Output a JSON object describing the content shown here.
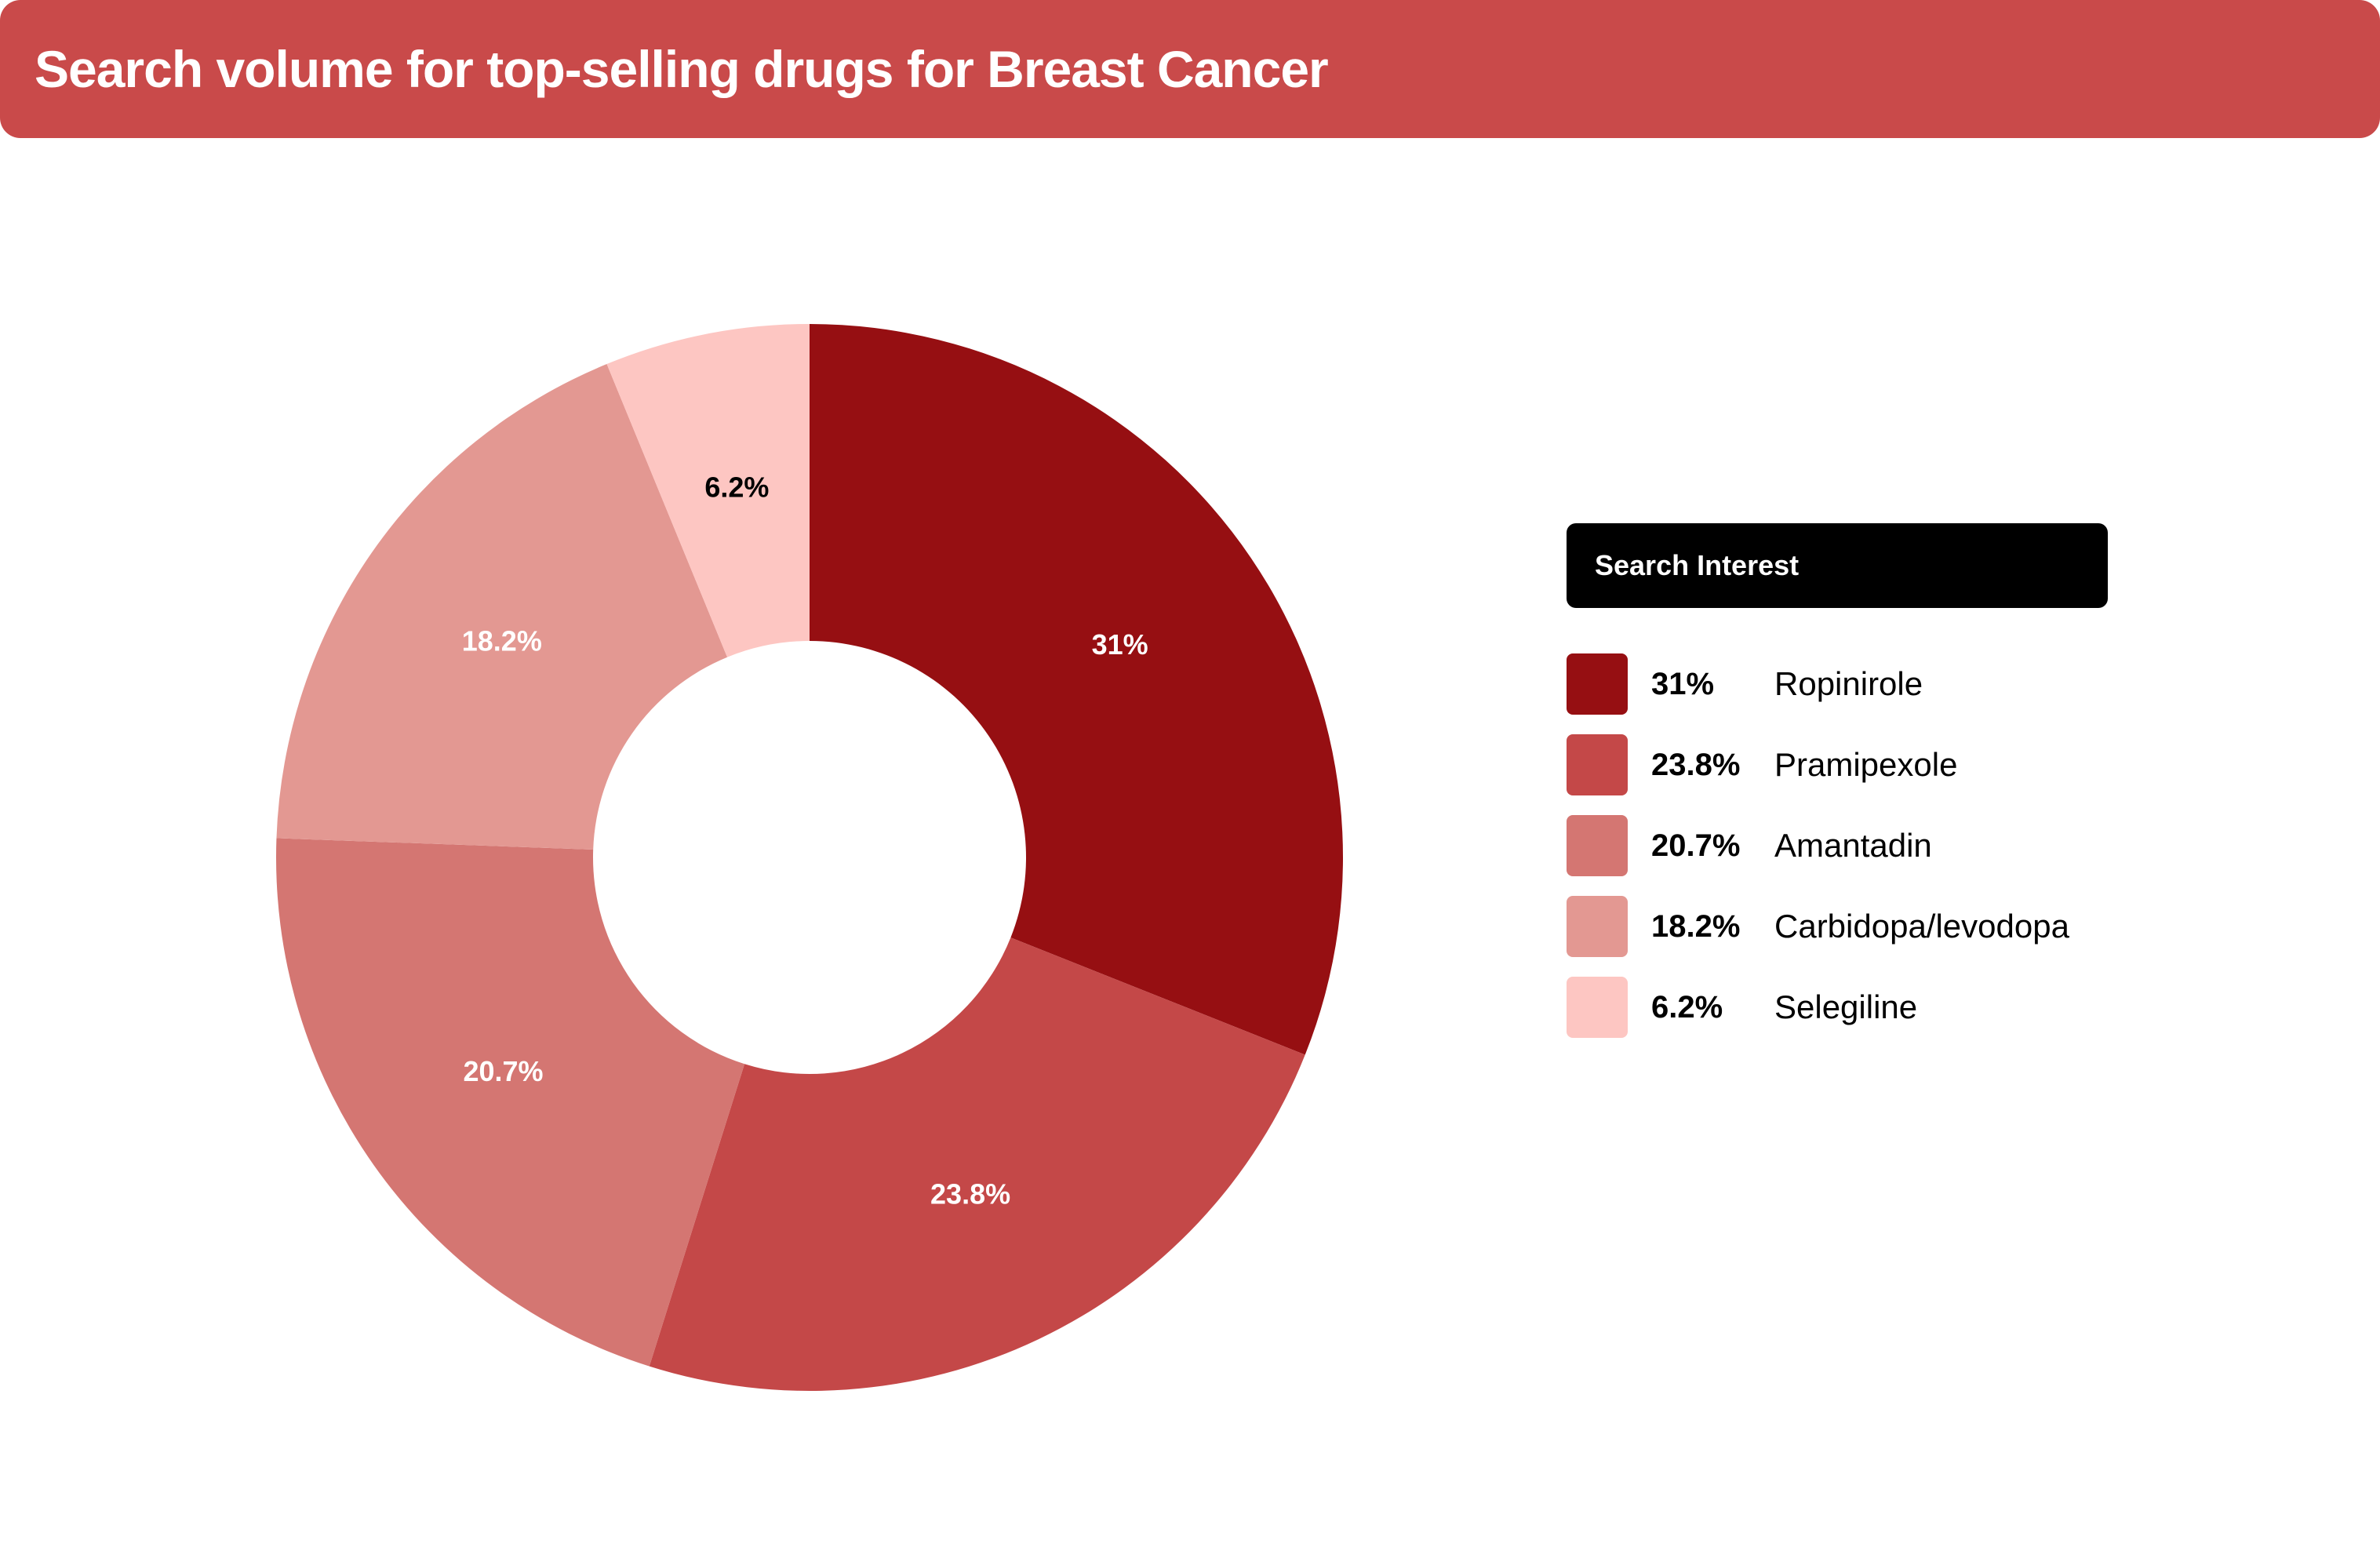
{
  "title": "Search volume for top-selling drugs for Breast Cancer",
  "legend": {
    "header": "Search Interest"
  },
  "colors": {
    "title_bar": "#c94a4a",
    "legend_header": "#000000"
  },
  "chart_data": {
    "type": "pie",
    "donut": true,
    "title": "Search volume for top-selling drugs for Breast Cancer",
    "legend_title": "Search Interest",
    "legend_placement": "right",
    "slices": [
      {
        "name": "Ropinirole",
        "value": 31,
        "label": "31%",
        "color": "#960f12",
        "label_color": "#ffffff"
      },
      {
        "name": "Pramipexole",
        "value": 23.8,
        "label": "23.8%",
        "color": "#c44848",
        "label_color": "#ffffff"
      },
      {
        "name": "Amantadin",
        "value": 20.7,
        "label": "20.7%",
        "color": "#d47672",
        "label_color": "#ffffff"
      },
      {
        "name": "Carbidopa/levodopa",
        "value": 18.2,
        "label": "18.2%",
        "color": "#e39892",
        "label_color": "#ffffff"
      },
      {
        "name": "Selegiline",
        "value": 6.2,
        "label": "6.2%",
        "color": "#fdc6c2",
        "label_color": "#000000"
      }
    ]
  }
}
